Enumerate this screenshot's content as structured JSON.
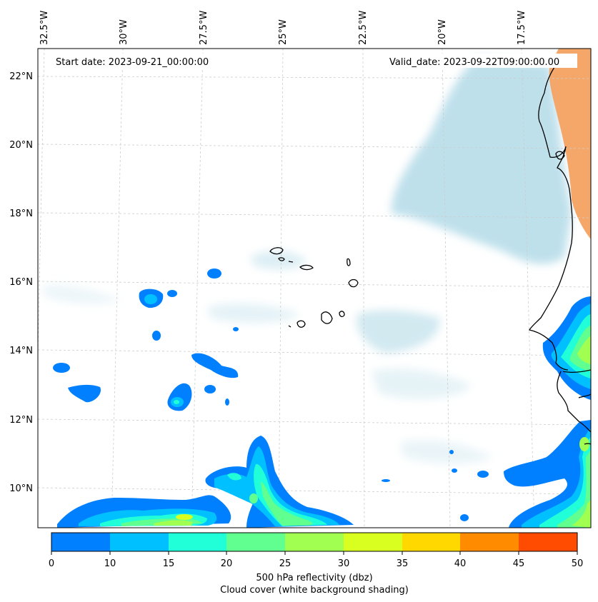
{
  "map": {
    "start_date": "Start date: 2023-09-21_00:00:00",
    "valid_date": "Valid_date: 2023-09-22T09:00:00.00",
    "lon_labels": [
      "32.5°W",
      "30°W",
      "27.5°W",
      "25°W",
      "22.5°W",
      "20°W",
      "17.5°W"
    ],
    "lat_labels": [
      "22°N",
      "20°N",
      "18°N",
      "16°N",
      "14°N",
      "12°N",
      "10°N"
    ]
  },
  "colorbar": {
    "ticks": [
      "0",
      "10",
      "15",
      "20",
      "25",
      "30",
      "35",
      "40",
      "45",
      "50"
    ],
    "colors": [
      "#0080ff",
      "#00c0ff",
      "#20ffd8",
      "#60ff90",
      "#a0ff50",
      "#d8ff20",
      "#ffd800",
      "#ff8c00",
      "#ff4c00"
    ],
    "label": "500 hPa reflectivity (dbz)",
    "sublabel": "Cloud cover (white background shading)"
  },
  "colors": {
    "cloud": "#a9d6e5",
    "land_warm": "#f4a262",
    "coast": "#000000",
    "grid": "#cccccc"
  }
}
